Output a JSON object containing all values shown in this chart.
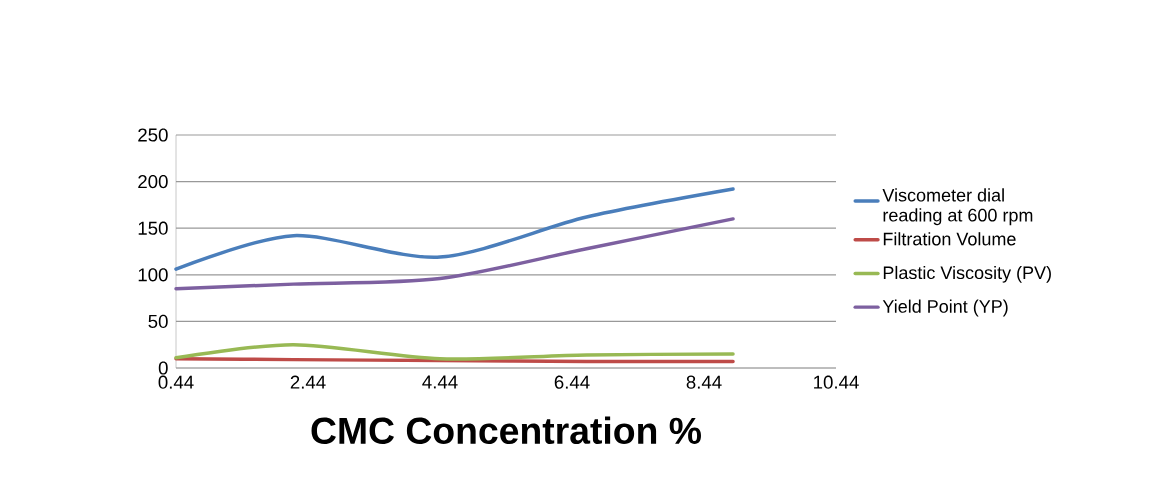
{
  "chart_data": {
    "type": "line",
    "xlabel": "CMC Concentration %",
    "x": [
      0.44,
      2.22,
      4.44,
      6.66,
      8.88
    ],
    "series": [
      {
        "name": "Viscometer dial reading at 600 rpm",
        "color": "#4a7ebb",
        "values": [
          106,
          142,
          119,
          162,
          192
        ]
      },
      {
        "name": "Filtration Volume",
        "color": "#be4b48",
        "values": [
          10,
          9,
          8,
          7,
          7
        ]
      },
      {
        "name": "Plastic Viscosity (PV)",
        "color": "#98b954",
        "values": [
          11,
          25,
          10,
          14,
          15
        ]
      },
      {
        "name": "Yield Point (YP)",
        "color": "#7d60a0",
        "values": [
          85,
          90,
          96,
          128,
          160
        ]
      }
    ],
    "xlim": [
      0.44,
      10.44
    ],
    "xticks": [
      0.44,
      2.44,
      4.44,
      6.44,
      8.44,
      10.44
    ],
    "ylim": [
      0,
      250
    ],
    "yticks": [
      0,
      50,
      100,
      150,
      200,
      250
    ],
    "grid": "y",
    "legend": "right",
    "marker": "none",
    "line_style": "solid"
  }
}
